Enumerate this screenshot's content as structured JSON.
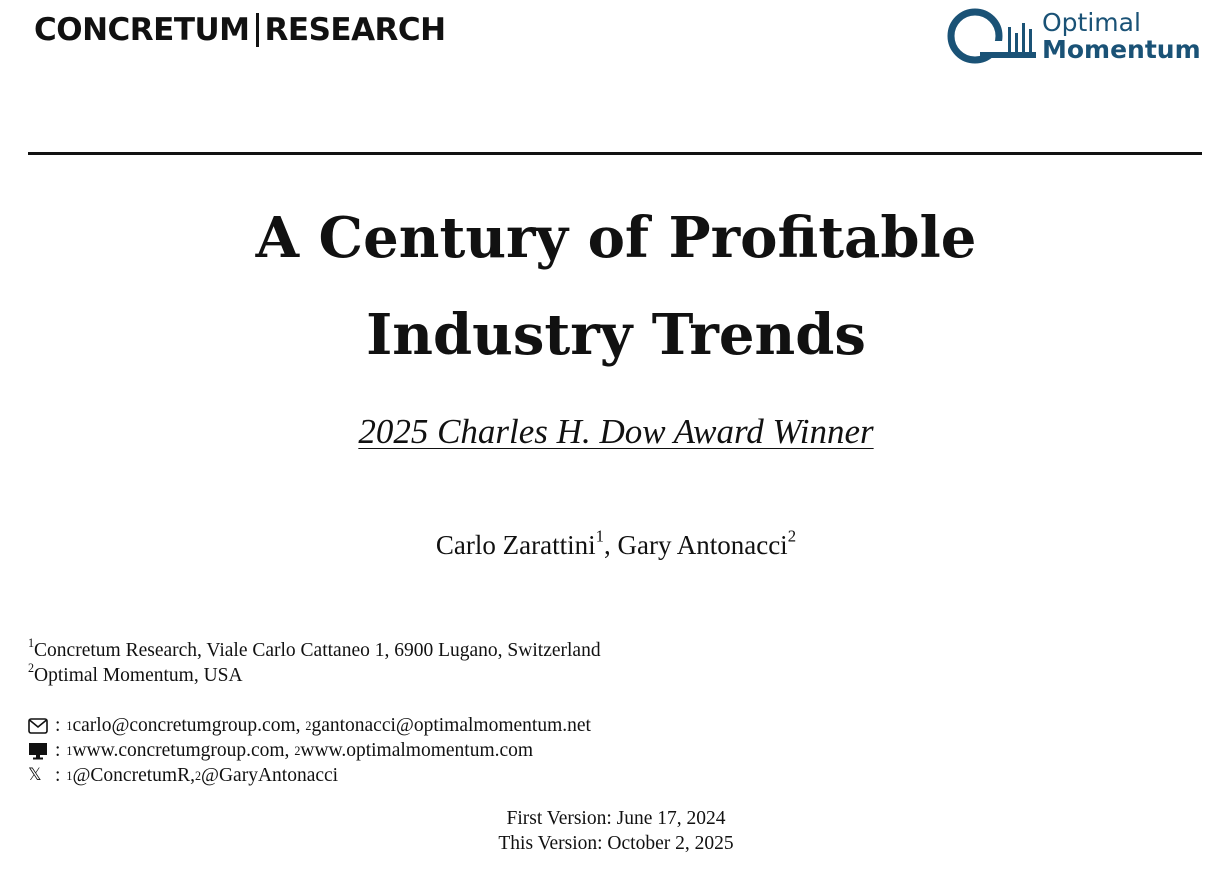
{
  "header": {
    "left_logo": {
      "part1": "CONCRETUM",
      "part2": "RESEARCH"
    },
    "right_logo": {
      "line1": "Optimal",
      "line2": "Momentum",
      "color": "#1a5276"
    }
  },
  "title": {
    "line1": "A Century of Profitable",
    "line2": "Industry Trends"
  },
  "award": "2025 Charles H. Dow Award Winner",
  "authors": [
    {
      "name": "Carlo Zarattini",
      "sup": "1"
    },
    {
      "name": "Gary Antonacci",
      "sup": "2"
    }
  ],
  "authors_separator": ", ",
  "affiliations": [
    {
      "sup": "1",
      "text": "Concretum Research, Viale Carlo Cattaneo 1, 6900 Lugano, Switzerland"
    },
    {
      "sup": "2",
      "text": "Optimal Momentum, USA"
    }
  ],
  "contacts": {
    "separator": ":",
    "email": {
      "icon": "envelope-icon",
      "items": [
        {
          "sup": "1",
          "text": "carlo@concretumgroup.com,"
        },
        {
          "sup": "2",
          "text": "gantonacci@optimalmomentum.net"
        }
      ]
    },
    "web": {
      "icon": "monitor-icon",
      "items": [
        {
          "sup": "1",
          "text": "www.concretumgroup.com,"
        },
        {
          "sup": "2",
          "text": "www.optimalmomentum.com"
        }
      ]
    },
    "x": {
      "icon": "x-logo-icon",
      "glyph": "𝕏",
      "items": [
        {
          "sup": "1",
          "text": "@ConcretumR,"
        },
        {
          "sup": "2",
          "text": "@GaryAntonacci"
        }
      ]
    }
  },
  "versions": {
    "first": "First Version: June 17, 2024",
    "current": "This Version: October 2, 2025"
  }
}
